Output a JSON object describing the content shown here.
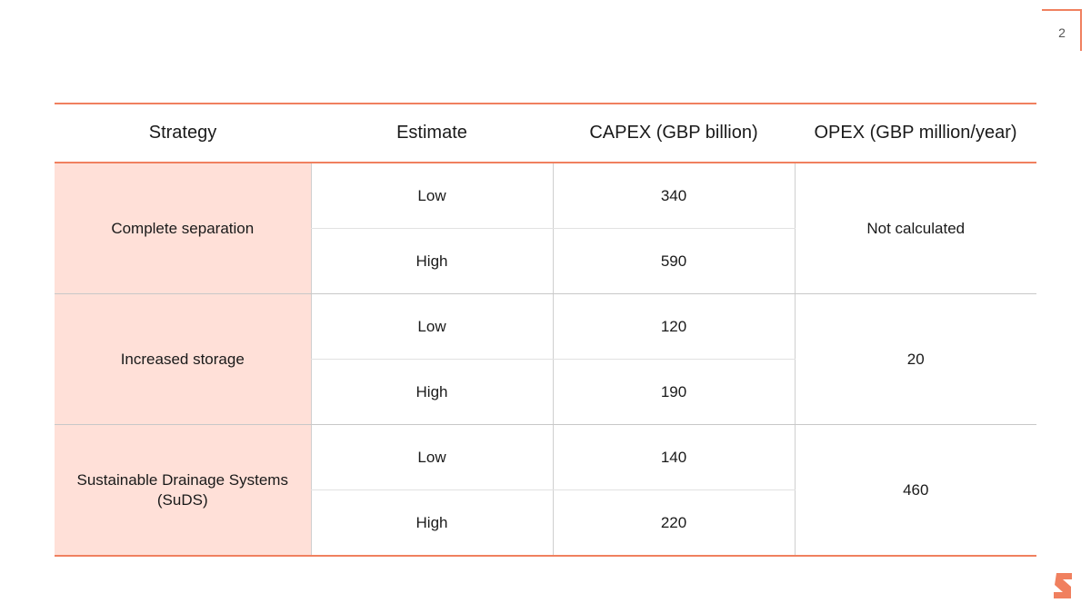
{
  "page": {
    "number": "2"
  },
  "table": {
    "headers": {
      "strategy": "Strategy",
      "estimate": "Estimate",
      "capex": "CAPEX (GBP billion)",
      "opex": "OPEX (GBP million/year)"
    },
    "groups": [
      {
        "strategy": "Complete separation",
        "opex": "Not calculated",
        "rows": [
          {
            "estimate": "Low",
            "capex": "340"
          },
          {
            "estimate": "High",
            "capex": "590"
          }
        ]
      },
      {
        "strategy": "Increased storage",
        "opex": "20",
        "rows": [
          {
            "estimate": "Low",
            "capex": "120"
          },
          {
            "estimate": "High",
            "capex": "190"
          }
        ]
      },
      {
        "strategy": "Sustainable Drainage Systems (SuDS)",
        "opex": "460",
        "rows": [
          {
            "estimate": "Low",
            "capex": "140"
          },
          {
            "estimate": "High",
            "capex": "220"
          }
        ]
      }
    ]
  },
  "colors": {
    "accent": "#f0805f",
    "strategy_fill": "#ffe0d8"
  },
  "logo": {
    "icon": "brand-s-logo-icon"
  }
}
